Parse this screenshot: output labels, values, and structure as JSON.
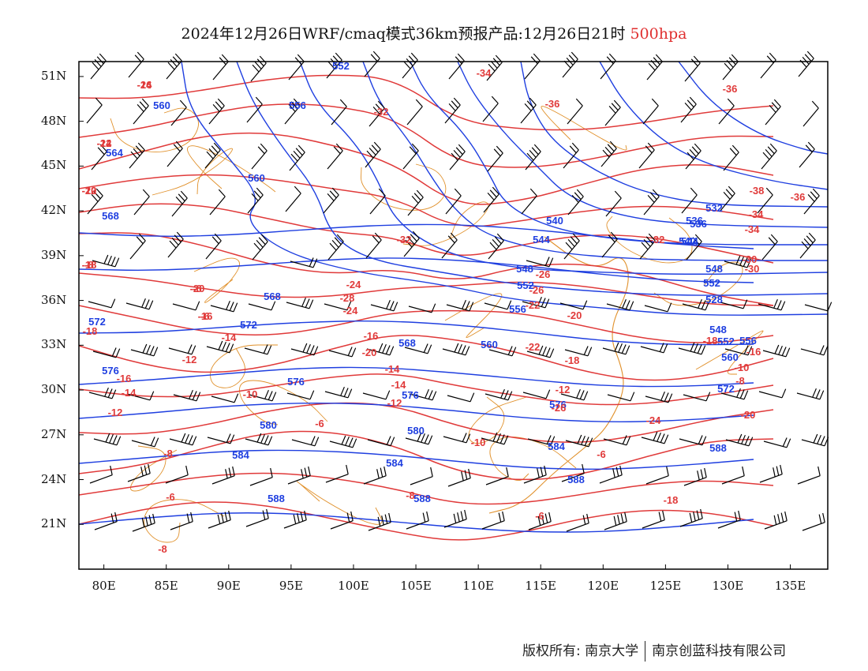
{
  "title": {
    "main": "2024年12月26日WRF/cmaq模式36km预报产品:12月26日21时",
    "level": "500hpa"
  },
  "map": {
    "lon_range": [
      78,
      138
    ],
    "lat_range": [
      18,
      52
    ],
    "lat_labels": [
      "51N",
      "48N",
      "45N",
      "42N",
      "39N",
      "36N",
      "33N",
      "30N",
      "27N",
      "24N",
      "21N"
    ],
    "lon_labels": [
      "80E",
      "85E",
      "90E",
      "95E",
      "100E",
      "105E",
      "110E",
      "115E",
      "120E",
      "125E",
      "130E",
      "135E"
    ],
    "colors": {
      "height": "#1f3fe0",
      "temperature": "#e03a3a",
      "boundary": "#e0902a",
      "wind": "#000000"
    },
    "height_labels": [
      "552",
      "560",
      "556",
      "564",
      "560",
      "568",
      "540",
      "544",
      "548",
      "552",
      "556",
      "568",
      "572",
      "572",
      "568",
      "560",
      "536",
      "544",
      "548",
      "552",
      "528",
      "532",
      "536",
      "540",
      "548",
      "552",
      "556",
      "560",
      "576",
      "576",
      "576",
      "572",
      "576",
      "580",
      "580",
      "584",
      "584",
      "584",
      "588",
      "588",
      "588",
      "588"
    ],
    "temperature_labels": [
      "-26",
      "-24",
      "-22",
      "-18",
      "-20",
      "-16",
      "-18",
      "-14",
      "-16",
      "-12",
      "-14",
      "-10",
      "-12",
      "-6",
      "-8",
      "-6",
      "-8",
      "-16",
      "-14",
      "-12",
      "-10",
      "-8",
      "-6",
      "-6",
      "-34",
      "-32",
      "-32",
      "-36",
      "-36",
      "-38",
      "-36",
      "-34",
      "-34",
      "-32",
      "-30",
      "-30",
      "-26",
      "-24",
      "-28",
      "-26",
      "-22",
      "-20",
      "-24",
      "-22",
      "-20",
      "-18",
      "-18",
      "-16",
      "-14",
      "-12",
      "-10",
      "-8",
      "-26",
      "-24",
      "-20",
      "-18",
      "-14",
      "-12",
      "-10",
      "-8",
      "-6",
      "-6"
    ]
  },
  "footer": {
    "copyright": "版权所有: 南京大学",
    "company": "南京创蓝科技有限公司"
  }
}
